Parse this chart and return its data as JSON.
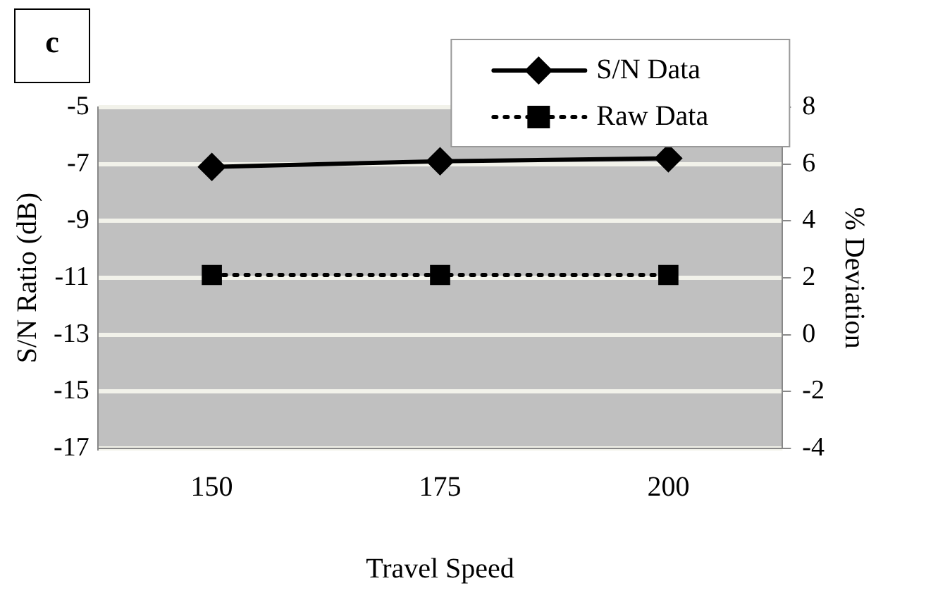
{
  "chart_data": {
    "type": "line",
    "xlabel": "Travel Speed",
    "ylabel": "S/N Ratio (dB)",
    "y2label": "% Deviation",
    "annotations": [
      "c"
    ],
    "categories": [
      "150",
      "175",
      "200"
    ],
    "series": [
      {
        "name": "S/N Data",
        "color": "#000000",
        "values": [
          -7.1,
          -6.9,
          -6.8
        ],
        "marker": "diamond",
        "line_style": "solid"
      },
      {
        "name": "Raw Data",
        "color": "#000000",
        "values": [
          2.1,
          2.1,
          2.1
        ],
        "axis": "y2",
        "marker": "square",
        "line_style": "dotted"
      }
    ],
    "ylim": [
      -17,
      -5
    ],
    "yticks": [
      -17,
      -15,
      -13,
      -11,
      -9,
      -7,
      -5
    ],
    "y2lim": [
      -4,
      8
    ],
    "y2ticks": [
      -4,
      -2,
      0,
      2,
      4,
      6,
      8
    ],
    "grid": "y",
    "legend": "top right"
  }
}
